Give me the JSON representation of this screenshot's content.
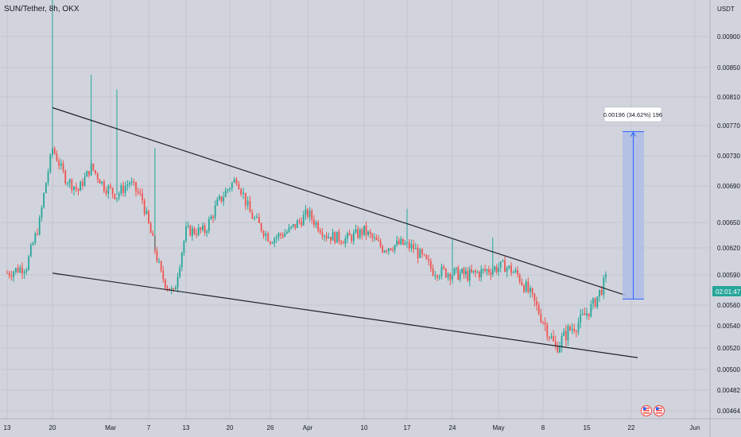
{
  "header": {
    "symbol_label": "SUN/Tether, 8h, OKX"
  },
  "colors": {
    "background": "#d1d4dc",
    "grid": "#c3c6ce",
    "up": "#26a69a",
    "down": "#ef5350",
    "trendline": "#1e222d",
    "measure_fill": "#aebbe6",
    "measure_border": "#2962ff",
    "price_badge": "#26a69a"
  },
  "chart_data": {
    "type": "candlestick",
    "title": "SUN/Tether, 8h, OKX",
    "currency_label": "USDT",
    "y_ticks": [
      "0.00900",
      "0.00850",
      "0.00810",
      "0.00770",
      "0.00730",
      "0.00690",
      "0.00650",
      "0.00620",
      "0.00590",
      "0.00560",
      "0.00540",
      "0.00520",
      "0.00500",
      "0.00482",
      "0.00464"
    ],
    "x_ticks": [
      "13",
      "20",
      "Mar",
      "7",
      "13",
      "20",
      "26",
      "Apr",
      "10",
      "17",
      "24",
      "May",
      "8",
      "15",
      "22",
      "Jun"
    ],
    "ohlc_sequence_start": "Feb 13",
    "ohlc_sequence_end": "May 19",
    "price_series": [
      {
        "t": "13",
        "p": 0.00592
      },
      {
        "t": "16",
        "p": 0.006
      },
      {
        "t": "18",
        "p": 0.0065
      },
      {
        "t": "20",
        "p": 0.0074
      },
      {
        "t": "22",
        "p": 0.007
      },
      {
        "t": "24",
        "p": 0.00685
      },
      {
        "t": "26",
        "p": 0.00715
      },
      {
        "t": "28",
        "p": 0.0069
      },
      {
        "t": "Mar 2",
        "p": 0.0068
      },
      {
        "t": "Mar 4",
        "p": 0.00695
      },
      {
        "t": "Mar 6",
        "p": 0.00675
      },
      {
        "t": "Mar 9",
        "p": 0.0059
      },
      {
        "t": "Mar 11",
        "p": 0.0057
      },
      {
        "t": "Mar 13",
        "p": 0.0064
      },
      {
        "t": "Mar 16",
        "p": 0.0064
      },
      {
        "t": "Mar 18",
        "p": 0.0067
      },
      {
        "t": "Mar 21",
        "p": 0.007
      },
      {
        "t": "Mar 23",
        "p": 0.0066
      },
      {
        "t": "Mar 26",
        "p": 0.0063
      },
      {
        "t": "Mar 29",
        "p": 0.0064
      },
      {
        "t": "Apr 1",
        "p": 0.0066
      },
      {
        "t": "Apr 4",
        "p": 0.00635
      },
      {
        "t": "Apr 7",
        "p": 0.0063
      },
      {
        "t": "Apr 10",
        "p": 0.0064
      },
      {
        "t": "Apr 13",
        "p": 0.0062
      },
      {
        "t": "Apr 16",
        "p": 0.00625
      },
      {
        "t": "Apr 18",
        "p": 0.0062
      },
      {
        "t": "Apr 21",
        "p": 0.00595
      },
      {
        "t": "Apr 24",
        "p": 0.00592
      },
      {
        "t": "Apr 27",
        "p": 0.0059
      },
      {
        "t": "Apr 30",
        "p": 0.00595
      },
      {
        "t": "May 3",
        "p": 0.006
      },
      {
        "t": "May 5",
        "p": 0.0059
      },
      {
        "t": "May 7",
        "p": 0.0057
      },
      {
        "t": "May 9",
        "p": 0.00545
      },
      {
        "t": "May 11",
        "p": 0.0052
      },
      {
        "t": "May 13",
        "p": 0.00535
      },
      {
        "t": "May 15",
        "p": 0.00545
      },
      {
        "t": "May 17",
        "p": 0.0056
      },
      {
        "t": "May 19",
        "p": 0.00585
      }
    ],
    "spike_highs": [
      {
        "t": "20",
        "p": 0.00985
      },
      {
        "t": "26",
        "p": 0.0084
      },
      {
        "t": "Mar 2",
        "p": 0.0082
      },
      {
        "t": "Mar 8",
        "p": 0.0074
      },
      {
        "t": "Apr 17",
        "p": 0.00665
      },
      {
        "t": "Apr 24",
        "p": 0.0063
      },
      {
        "t": "May 1",
        "p": 0.00632
      }
    ],
    "trendlines": [
      {
        "name": "upper",
        "from": {
          "t": "20",
          "p": 0.00795
        },
        "to": {
          "t": "May 22",
          "p": 0.0057
        }
      },
      {
        "name": "lower",
        "from": {
          "t": "20",
          "p": 0.00592
        },
        "to": {
          "t": "May 24",
          "p": 0.00511
        }
      }
    ],
    "measure": {
      "label": "0.00196 (34.62%) 196",
      "from_price": 0.00566,
      "to_price": 0.00762
    },
    "current_price_label": "02:01:47",
    "grid": true
  }
}
